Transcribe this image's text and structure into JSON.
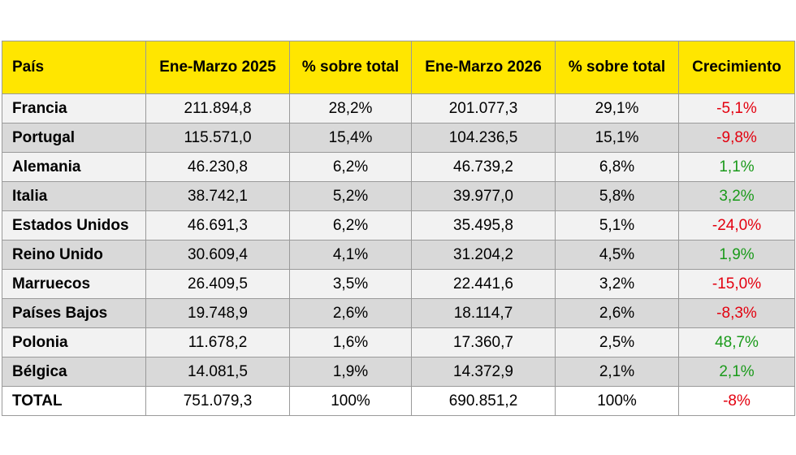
{
  "colors": {
    "header_bg": "#ffe600",
    "row_light": "#f2f2f2",
    "row_dark": "#d9d9d9",
    "negative": "#e3000f",
    "positive": "#1a9a1a"
  },
  "chart_data": {
    "type": "table",
    "columns": [
      "País",
      "Ene-Marzo 2025",
      "% sobre total",
      "Ene-Marzo 2026",
      "% sobre total",
      "Crecimiento"
    ],
    "rows": [
      {
        "country": "Francia",
        "v2025": "211.894,8",
        "pct2025": "28,2%",
        "v2026": "201.077,3",
        "pct2026": "29,1%",
        "growth": "-5,1%",
        "trend": "neg"
      },
      {
        "country": "Portugal",
        "v2025": "115.571,0",
        "pct2025": "15,4%",
        "v2026": "104.236,5",
        "pct2026": "15,1%",
        "growth": "-9,8%",
        "trend": "neg"
      },
      {
        "country": "Alemania",
        "v2025": "46.230,8",
        "pct2025": "6,2%",
        "v2026": "46.739,2",
        "pct2026": "6,8%",
        "growth": "1,1%",
        "trend": "pos"
      },
      {
        "country": "Italia",
        "v2025": "38.742,1",
        "pct2025": "5,2%",
        "v2026": "39.977,0",
        "pct2026": "5,8%",
        "growth": "3,2%",
        "trend": "pos"
      },
      {
        "country": "Estados Unidos",
        "v2025": "46.691,3",
        "pct2025": "6,2%",
        "v2026": "35.495,8",
        "pct2026": "5,1%",
        "growth": "-24,0%",
        "trend": "neg"
      },
      {
        "country": "Reino Unido",
        "v2025": "30.609,4",
        "pct2025": "4,1%",
        "v2026": "31.204,2",
        "pct2026": "4,5%",
        "growth": "1,9%",
        "trend": "pos"
      },
      {
        "country": "Marruecos",
        "v2025": "26.409,5",
        "pct2025": "3,5%",
        "v2026": "22.441,6",
        "pct2026": "3,2%",
        "growth": "-15,0%",
        "trend": "neg"
      },
      {
        "country": "Países Bajos",
        "v2025": "19.748,9",
        "pct2025": "2,6%",
        "v2026": "18.114,7",
        "pct2026": "2,6%",
        "growth": "-8,3%",
        "trend": "neg"
      },
      {
        "country": "Polonia",
        "v2025": "11.678,2",
        "pct2025": "1,6%",
        "v2026": "17.360,7",
        "pct2026": "2,5%",
        "growth": "48,7%",
        "trend": "pos"
      },
      {
        "country": "Bélgica",
        "v2025": "14.081,5",
        "pct2025": "1,9%",
        "v2026": "14.372,9",
        "pct2026": "2,1%",
        "growth": "2,1%",
        "trend": "pos"
      }
    ],
    "total": {
      "country": "TOTAL",
      "v2025": "751.079,3",
      "pct2025": "100%",
      "v2026": "690.851,2",
      "pct2026": "100%",
      "growth": "-8%",
      "trend": "neg"
    }
  }
}
